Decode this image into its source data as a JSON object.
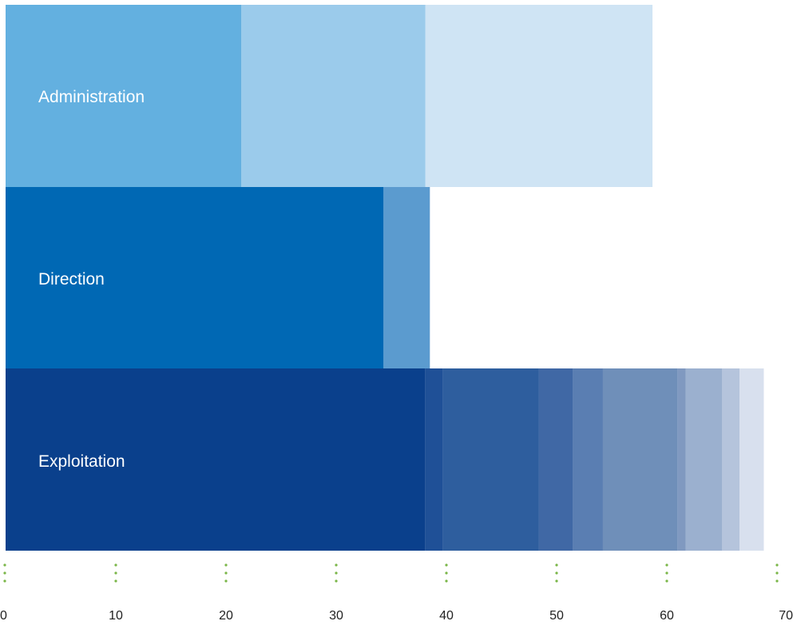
{
  "chart_data": {
    "type": "bar",
    "orientation": "horizontal",
    "stacked": true,
    "categories": [
      "Administration",
      "Direction",
      "Exploitation"
    ],
    "segments": [
      [
        {
          "value": 21.4,
          "color": "#63b0e0"
        },
        {
          "value": 16.7,
          "color": "#9bcbeb"
        },
        {
          "value": 20.6,
          "color": "#cfe4f4"
        }
      ],
      [
        {
          "value": 34.3,
          "color": "#0068b4"
        },
        {
          "value": 4.2,
          "color": "#5b9bcf"
        }
      ],
      [
        {
          "value": 38.1,
          "color": "#0a408c"
        },
        {
          "value": 1.6,
          "color": "#1f5097"
        },
        {
          "value": 8.7,
          "color": "#2e5e9e"
        },
        {
          "value": 3.1,
          "color": "#4068a5"
        },
        {
          "value": 2.7,
          "color": "#5a7eb2"
        },
        {
          "value": 6.8,
          "color": "#6f8fb9"
        },
        {
          "value": 0.7,
          "color": "#8099c0"
        },
        {
          "value": 3.3,
          "color": "#9bb0cf"
        },
        {
          "value": 1.6,
          "color": "#b5c4dc"
        },
        {
          "value": 2.2,
          "color": "#d8e0ee"
        }
      ]
    ],
    "xticks": [
      "0",
      "10",
      "20",
      "30",
      "40",
      "50",
      "60",
      "70"
    ],
    "xlim": [
      0,
      70
    ],
    "tick_marker_color": "#7ab648",
    "grid": false,
    "legend": "none"
  }
}
